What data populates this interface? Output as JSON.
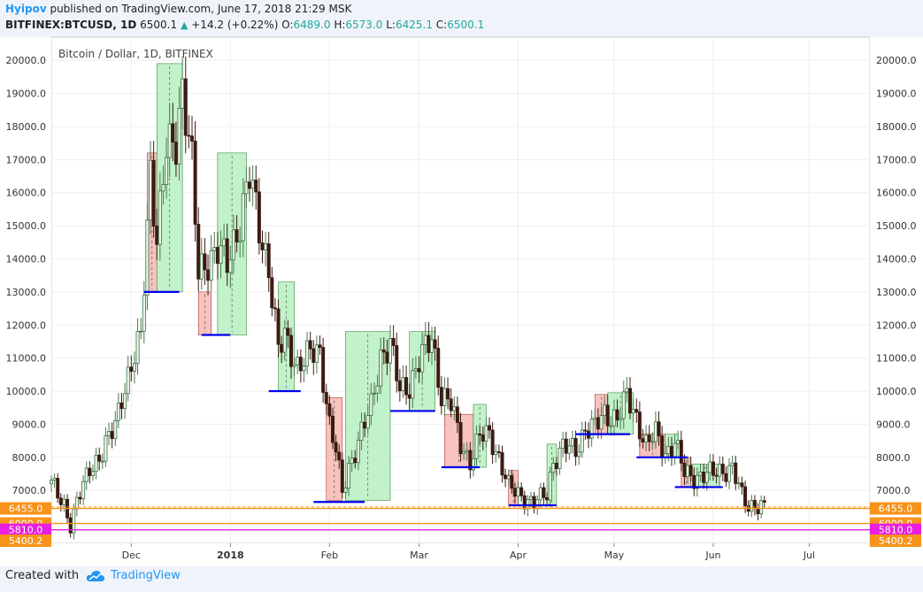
{
  "header": {
    "author": "Hyipov",
    "published_text": " published on TradingView.com, June 17, 2018 21:29 MSK",
    "symbol": "BITFINEX:BTCUSD, 1D",
    "last": "6500.1",
    "change": "+14.2 (+0.22%)",
    "o_label": "O:",
    "o": "6489.0",
    "h_label": "H:",
    "h": "6573.0",
    "l_label": "L:",
    "l": "6425.1",
    "c_label": "C:",
    "c": "6500.1"
  },
  "footer": {
    "created_with": "Created with",
    "brand": "TradingView"
  },
  "colors": {
    "up": "#26a69a",
    "down": "#3b1b12",
    "accent": "#2196f3",
    "orange": "#f7931a",
    "magenta": "#e91ee0",
    "blue_level": "#0000ee"
  },
  "chart_data": {
    "type": "candlestick",
    "title": "Bitcoin / Dollar, 1D, BITFINEX",
    "ylim": [
      5400,
      20700
    ],
    "y_ticks": [
      "20000.0",
      "19000.0",
      "18000.0",
      "17000.0",
      "16000.0",
      "15000.0",
      "14000.0",
      "13000.0",
      "12000.0",
      "11000.0",
      "10000.0",
      "9000.0",
      "8000.0",
      "7000.0"
    ],
    "x_labels": [
      "Dec",
      "2018",
      "Feb",
      "Mar",
      "Apr",
      "May",
      "Jun",
      "Jul"
    ],
    "x_label_dates": [
      "2017-12-01",
      "2018-01-01",
      "2018-02-01",
      "2018-03-01",
      "2018-04-01",
      "2018-05-01",
      "2018-06-01",
      "2018-07-01"
    ],
    "x_range": [
      "2017-11-06",
      "2018-07-20"
    ],
    "closes": [
      [
        "2017-11-06",
        7200
      ],
      [
        "2017-11-10",
        6600
      ],
      [
        "2017-11-12",
        5950
      ],
      [
        "2017-11-14",
        6600
      ],
      [
        "2017-11-18",
        7700
      ],
      [
        "2017-11-22",
        8100
      ],
      [
        "2017-11-26",
        9000
      ],
      [
        "2017-11-28",
        9900
      ],
      [
        "2017-12-01",
        10700
      ],
      [
        "2017-12-04",
        11600
      ],
      [
        "2017-12-07",
        16800
      ],
      [
        "2017-12-09",
        14600
      ],
      [
        "2017-12-12",
        17200
      ],
      [
        "2017-12-15",
        17600
      ],
      [
        "2017-12-17",
        19300
      ],
      [
        "2017-12-20",
        16800
      ],
      [
        "2017-12-22",
        13500
      ],
      [
        "2017-12-25",
        14000
      ],
      [
        "2017-12-28",
        14300
      ],
      [
        "2017-12-31",
        13800
      ],
      [
        "2018-01-04",
        15200
      ],
      [
        "2018-01-07",
        16500
      ],
      [
        "2018-01-10",
        14900
      ],
      [
        "2018-01-13",
        13800
      ],
      [
        "2018-01-16",
        11200
      ],
      [
        "2018-01-18",
        11600
      ],
      [
        "2018-01-22",
        10800
      ],
      [
        "2018-01-26",
        11100
      ],
      [
        "2018-01-29",
        11200
      ],
      [
        "2018-02-01",
        9000
      ],
      [
        "2018-02-03",
        8200
      ],
      [
        "2018-02-05",
        6900
      ],
      [
        "2018-02-07",
        7700
      ],
      [
        "2018-02-10",
        8500
      ],
      [
        "2018-02-14",
        9500
      ],
      [
        "2018-02-17",
        11100
      ],
      [
        "2018-02-20",
        11400
      ],
      [
        "2018-02-23",
        10000
      ],
      [
        "2018-02-26",
        10200
      ],
      [
        "2018-03-01",
        10900
      ],
      [
        "2018-03-05",
        11600
      ],
      [
        "2018-03-08",
        9900
      ],
      [
        "2018-03-11",
        9600
      ],
      [
        "2018-03-14",
        8400
      ],
      [
        "2018-03-17",
        7900
      ],
      [
        "2018-03-20",
        8600
      ],
      [
        "2018-03-23",
        8700
      ],
      [
        "2018-03-26",
        8000
      ],
      [
        "2018-03-29",
        7100
      ],
      [
        "2018-04-01",
        6900
      ],
      [
        "2018-04-06",
        6600
      ],
      [
        "2018-04-10",
        6900
      ],
      [
        "2018-04-12",
        7900
      ],
      [
        "2018-04-15",
        8300
      ],
      [
        "2018-04-19",
        8200
      ],
      [
        "2018-04-22",
        8900
      ],
      [
        "2018-04-25",
        8900
      ],
      [
        "2018-04-28",
        9300
      ],
      [
        "2018-05-02",
        9200
      ],
      [
        "2018-05-05",
        9800
      ],
      [
        "2018-05-08",
        9200
      ],
      [
        "2018-05-11",
        8400
      ],
      [
        "2018-05-14",
        8700
      ],
      [
        "2018-05-17",
        8100
      ],
      [
        "2018-05-20",
        8500
      ],
      [
        "2018-05-23",
        7500
      ],
      [
        "2018-05-26",
        7400
      ],
      [
        "2018-05-29",
        7500
      ],
      [
        "2018-06-01",
        7500
      ],
      [
        "2018-06-04",
        7600
      ],
      [
        "2018-06-07",
        7700
      ],
      [
        "2018-06-10",
        6800
      ],
      [
        "2018-06-12",
        6500
      ],
      [
        "2018-06-14",
        6600
      ],
      [
        "2018-06-17",
        6500
      ]
    ],
    "boxes": [
      {
        "from": "2017-12-06",
        "to": "2017-12-09",
        "low": 13000,
        "high": 17200,
        "kind": "down"
      },
      {
        "from": "2017-12-09",
        "to": "2017-12-17",
        "low": 13000,
        "high": 19900,
        "kind": "up"
      },
      {
        "from": "2017-12-22",
        "to": "2017-12-26",
        "low": 11700,
        "high": 13000,
        "kind": "down"
      },
      {
        "from": "2017-12-28",
        "to": "2018-01-06",
        "low": 11700,
        "high": 17200,
        "kind": "up"
      },
      {
        "from": "2018-01-16",
        "to": "2018-01-21",
        "low": 10000,
        "high": 13300,
        "kind": "up"
      },
      {
        "from": "2018-01-31",
        "to": "2018-02-05",
        "low": 6700,
        "high": 9800,
        "kind": "down"
      },
      {
        "from": "2018-02-06",
        "to": "2018-02-20",
        "low": 6700,
        "high": 11800,
        "kind": "up"
      },
      {
        "from": "2018-02-26",
        "to": "2018-03-06",
        "low": 9400,
        "high": 11800,
        "kind": "up"
      },
      {
        "from": "2018-03-09",
        "to": "2018-03-18",
        "low": 7700,
        "high": 9300,
        "kind": "down"
      },
      {
        "from": "2018-03-18",
        "to": "2018-03-22",
        "low": 7700,
        "high": 9600,
        "kind": "up"
      },
      {
        "from": "2018-03-29",
        "to": "2018-04-01",
        "low": 6550,
        "high": 7600,
        "kind": "down"
      },
      {
        "from": "2018-04-10",
        "to": "2018-04-13",
        "low": 6550,
        "high": 8400,
        "kind": "up"
      },
      {
        "from": "2018-04-25",
        "to": "2018-04-29",
        "low": 8700,
        "high": 9900,
        "kind": "down"
      },
      {
        "from": "2018-04-29",
        "to": "2018-05-07",
        "low": 8700,
        "high": 9950,
        "kind": "up"
      },
      {
        "from": "2018-05-09",
        "to": "2018-05-17",
        "low": 8000,
        "high": 8700,
        "kind": "down"
      },
      {
        "from": "2018-05-17",
        "to": "2018-05-21",
        "low": 8000,
        "high": 8700,
        "kind": "up"
      },
      {
        "from": "2018-05-22",
        "to": "2018-05-25",
        "low": 7100,
        "high": 8000,
        "kind": "down"
      },
      {
        "from": "2018-05-25",
        "to": "2018-06-03",
        "low": 7100,
        "high": 7800,
        "kind": "up"
      }
    ],
    "levels": [
      {
        "from": "2017-12-05",
        "to": "2017-12-16",
        "price": 13000
      },
      {
        "from": "2017-12-23",
        "to": "2018-01-01",
        "price": 11700
      },
      {
        "from": "2018-01-13",
        "to": "2018-01-23",
        "price": 10000
      },
      {
        "from": "2018-01-27",
        "to": "2018-02-12",
        "price": 6650
      },
      {
        "from": "2018-02-20",
        "to": "2018-03-06",
        "price": 9400
      },
      {
        "from": "2018-03-08",
        "to": "2018-03-20",
        "price": 7700
      },
      {
        "from": "2018-03-29",
        "to": "2018-04-13",
        "price": 6550
      },
      {
        "from": "2018-04-19",
        "to": "2018-05-06",
        "price": 8700
      },
      {
        "from": "2018-05-08",
        "to": "2018-05-24",
        "price": 8000
      },
      {
        "from": "2018-05-20",
        "to": "2018-06-04",
        "price": 7100
      }
    ],
    "hlines": [
      {
        "price": 6500.1,
        "label": "6500.1",
        "style": "dashed",
        "color": "#f7931a",
        "tag": "plain"
      },
      {
        "price": 6455.0,
        "label": "6455.0",
        "style": "solid",
        "color": "#f7931a",
        "tag": "orange"
      },
      {
        "price": 6000.0,
        "label": "6000.0",
        "style": "solid",
        "color": "#f7931a",
        "tag": "orange"
      },
      {
        "price": 5810.0,
        "label": "5810.0",
        "style": "solid",
        "color": "#e91ee0",
        "tag": "magenta"
      },
      {
        "price": 5400.2,
        "label": "5400.2",
        "style": "solid",
        "color": "#f7931a",
        "tag": "orange"
      }
    ]
  }
}
